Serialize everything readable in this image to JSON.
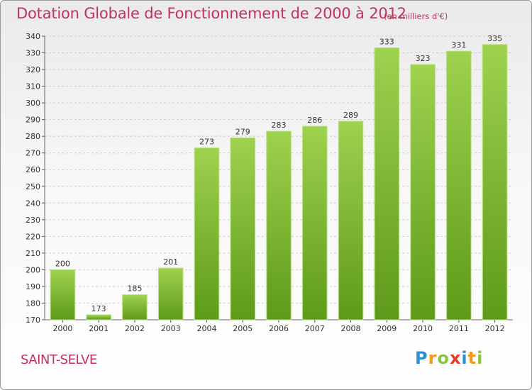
{
  "chart_data": {
    "type": "bar",
    "title": "Dotation Globale de Fonctionnement de 2000 à 2012",
    "subtitle": "(en milliers d'€)",
    "categories": [
      "2000",
      "2001",
      "2002",
      "2003",
      "2004",
      "2005",
      "2006",
      "2007",
      "2008",
      "2009",
      "2010",
      "2011",
      "2012"
    ],
    "values": [
      200,
      173,
      185,
      201,
      273,
      279,
      283,
      286,
      289,
      333,
      323,
      331,
      335
    ],
    "ylim": [
      170,
      340
    ],
    "yticks": [
      170,
      180,
      190,
      200,
      210,
      220,
      230,
      240,
      250,
      260,
      270,
      280,
      290,
      300,
      310,
      320,
      330,
      340
    ],
    "grid": true,
    "bar_color_top": "#9ed24f",
    "bar_color_bottom": "#5e9a1a"
  },
  "footer": {
    "commune": "SAINT-SELVE",
    "logo": {
      "p": "P",
      "r": "r",
      "o": "o",
      "x": "x",
      "i": "i",
      "t": "t",
      "i2": "i"
    }
  },
  "colors": {
    "accent": "#c4325b",
    "grid": "#cccccc"
  }
}
